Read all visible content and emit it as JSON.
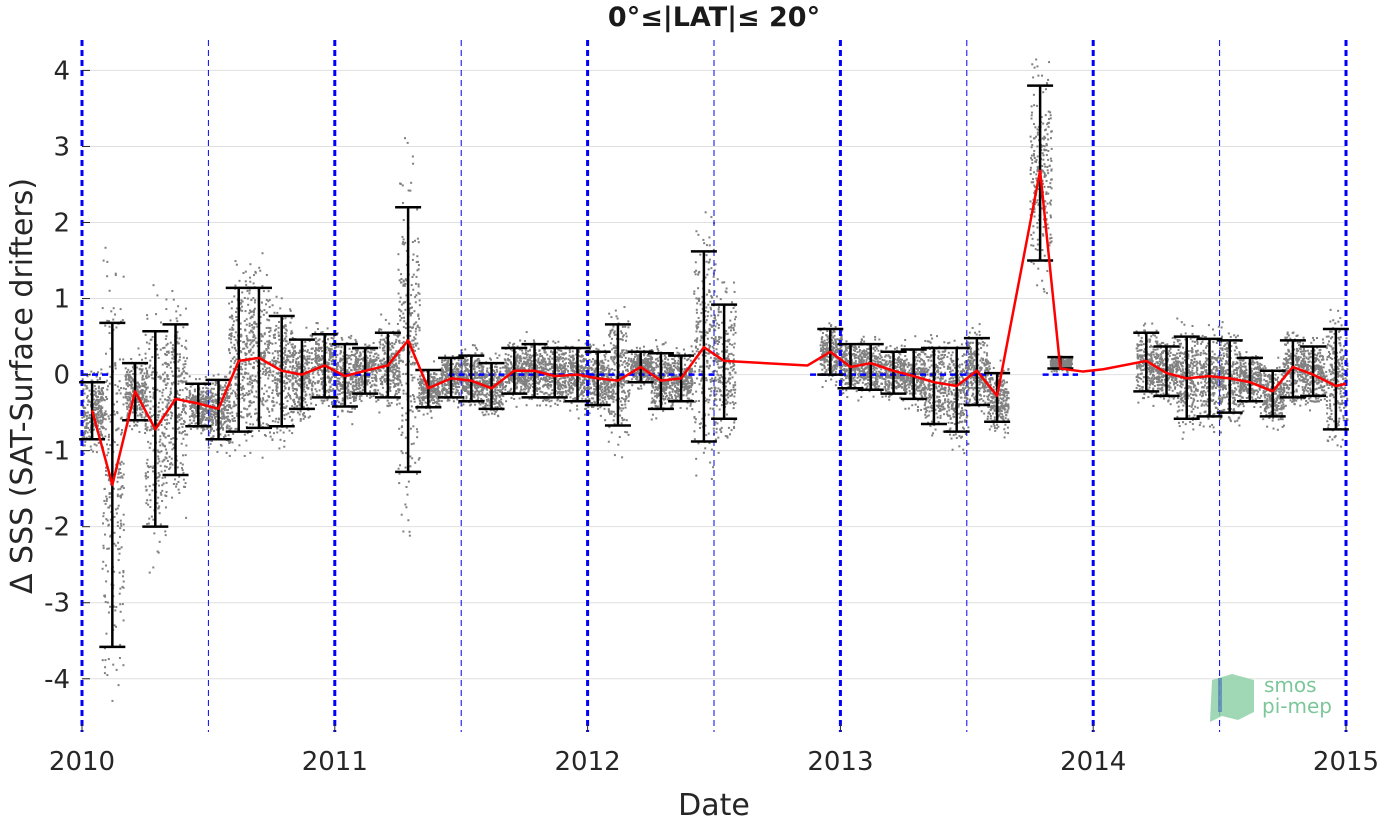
{
  "chart_data": {
    "type": "line",
    "title": "0°≤|LAT|≤ 20°",
    "xlabel": "Date",
    "ylabel": "Δ SSS (SAT-Surface drifters)",
    "xlim": [
      2010,
      2015
    ],
    "ylim": [
      -4.7,
      4.4
    ],
    "x_ticks": [
      {
        "value": 2010,
        "label": "2010"
      },
      {
        "value": 2011,
        "label": "2011"
      },
      {
        "value": 2012,
        "label": "2012"
      },
      {
        "value": 2013,
        "label": "2013"
      },
      {
        "value": 2014,
        "label": "2014"
      },
      {
        "value": 2015,
        "label": "2015"
      }
    ],
    "y_ticks": [
      {
        "value": 4,
        "label": "4"
      },
      {
        "value": 3,
        "label": "3"
      },
      {
        "value": 2,
        "label": "2"
      },
      {
        "value": 1,
        "label": "1"
      },
      {
        "value": 0,
        "label": "0"
      },
      {
        "value": -1,
        "label": "-1"
      },
      {
        "value": -2,
        "label": "-2"
      },
      {
        "value": -3,
        "label": "-3"
      },
      {
        "value": -4,
        "label": "-4"
      }
    ],
    "grid": true,
    "year_lines": [
      2010,
      2011,
      2012,
      2013,
      2014,
      2015
    ],
    "half_year_lines": [
      2010.5,
      2011.5,
      2012.5,
      2013.5,
      2014.5
    ],
    "zero_line_segments": [
      [
        2010,
        2010.12
      ],
      [
        2011,
        2011.14
      ],
      [
        2011.45,
        2012.5
      ],
      [
        2012.88,
        2013.6
      ],
      [
        2013.8,
        2013.94
      ]
    ],
    "series": [
      {
        "type": "line",
        "color": "#ff0000",
        "x": [
          2010.04,
          2010.12,
          2010.21,
          2010.29,
          2010.37,
          2010.46,
          2010.54,
          2010.62,
          2010.7,
          2010.79,
          2010.87,
          2010.96,
          2011.04,
          2011.12,
          2011.21,
          2011.29,
          2011.37,
          2011.46,
          2011.54,
          2011.62,
          2011.71,
          2011.79,
          2011.87,
          2011.96,
          2012.04,
          2012.12,
          2012.21,
          2012.29,
          2012.37,
          2012.46,
          2012.54,
          2012.87,
          2012.96,
          2013.04,
          2013.12,
          2013.21,
          2013.29,
          2013.37,
          2013.46,
          2013.54,
          2013.62,
          2013.79,
          2013.87,
          2013.96,
          2014.04,
          2014.21,
          2014.29,
          2014.37,
          2014.46,
          2014.54,
          2014.62,
          2014.71,
          2014.79,
          2014.87,
          2014.96,
          2015.0
        ],
        "y": [
          -0.47,
          -1.45,
          -0.22,
          -0.72,
          -0.32,
          -0.38,
          -0.45,
          0.18,
          0.22,
          0.05,
          0.0,
          0.12,
          -0.02,
          0.05,
          0.12,
          0.45,
          -0.18,
          -0.05,
          -0.08,
          -0.18,
          0.05,
          0.05,
          -0.02,
          0.0,
          -0.05,
          -0.08,
          0.1,
          -0.08,
          -0.05,
          0.36,
          0.18,
          0.12,
          0.3,
          0.1,
          0.15,
          0.05,
          -0.02,
          -0.1,
          -0.15,
          0.05,
          -0.28,
          2.68,
          0.08,
          0.04,
          0.07,
          0.18,
          0.02,
          -0.05,
          -0.02,
          -0.05,
          -0.1,
          -0.22,
          0.1,
          0.0,
          -0.15,
          -0.12
        ]
      },
      {
        "type": "errorbar",
        "color": "#000000",
        "x": [
          2010.04,
          2010.12,
          2010.21,
          2010.29,
          2010.37,
          2010.46,
          2010.54,
          2010.62,
          2010.7,
          2010.79,
          2010.87,
          2010.96,
          2011.04,
          2011.12,
          2011.21,
          2011.29,
          2011.37,
          2011.46,
          2011.54,
          2011.62,
          2011.71,
          2011.79,
          2011.87,
          2011.96,
          2012.04,
          2012.12,
          2012.21,
          2012.29,
          2012.37,
          2012.46,
          2012.54,
          2012.96,
          2013.04,
          2013.12,
          2013.21,
          2013.29,
          2013.37,
          2013.46,
          2013.54,
          2013.62,
          2013.79,
          2013.87,
          2014.21,
          2014.29,
          2014.37,
          2014.46,
          2014.54,
          2014.62,
          2014.71,
          2014.79,
          2014.87,
          2014.96
        ],
        "low": [
          -0.85,
          -3.58,
          -0.6,
          -2.0,
          -1.32,
          -0.68,
          -0.85,
          -0.75,
          -0.7,
          -0.68,
          -0.45,
          -0.3,
          -0.42,
          -0.25,
          -0.3,
          -1.28,
          -0.43,
          -0.3,
          -0.35,
          -0.45,
          -0.25,
          -0.3,
          -0.3,
          -0.35,
          -0.4,
          -0.67,
          -0.1,
          -0.45,
          -0.35,
          -0.88,
          -0.58,
          0.0,
          -0.18,
          -0.2,
          -0.25,
          -0.32,
          -0.65,
          -0.75,
          -0.4,
          -0.62,
          1.5,
          0.08,
          -0.22,
          -0.28,
          -0.58,
          -0.55,
          -0.5,
          -0.35,
          -0.55,
          -0.3,
          -0.28,
          -0.72
        ],
        "high": [
          -0.1,
          0.68,
          0.15,
          0.57,
          0.66,
          -0.12,
          -0.07,
          1.14,
          1.14,
          0.77,
          0.46,
          0.53,
          0.4,
          0.35,
          0.55,
          2.2,
          0.06,
          0.22,
          0.25,
          0.15,
          0.35,
          0.4,
          0.35,
          0.35,
          0.3,
          0.66,
          0.3,
          0.28,
          0.25,
          1.62,
          0.92,
          0.6,
          0.4,
          0.4,
          0.3,
          0.33,
          0.35,
          0.35,
          0.48,
          0.02,
          3.8,
          0.23,
          0.55,
          0.37,
          0.5,
          0.47,
          0.45,
          0.22,
          0.05,
          0.45,
          0.37,
          0.6
        ]
      }
    ],
    "scatter_color": "#808080",
    "scatter_note_colors": {
      "grid": "#e0e0e0",
      "year_line": "#0000ff",
      "zero_line": "#0000ff"
    }
  },
  "logo": {
    "line1": "smos",
    "line2": "pi-mep",
    "color": "#7cc79a"
  }
}
